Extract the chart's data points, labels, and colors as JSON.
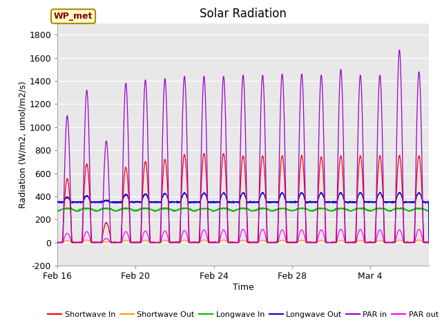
{
  "title": "Solar Radiation",
  "xlabel": "Time",
  "ylabel": "Radiation (W/m2, umol/m2/s)",
  "ylim": [
    -200,
    1900
  ],
  "yticks": [
    -200,
    0,
    200,
    400,
    600,
    800,
    1000,
    1200,
    1400,
    1600,
    1800
  ],
  "xtick_labels": [
    "Feb 16",
    "Feb 20",
    "Feb 24",
    "Feb 28",
    "Mar 4"
  ],
  "figure_bg_color": "#ffffff",
  "plot_bg_color": "#e8e8e8",
  "grid_color": "#ffffff",
  "colors": {
    "shortwave_in": "#ff0000",
    "shortwave_out": "#ff9900",
    "longwave_in": "#00bb00",
    "longwave_out": "#0000cc",
    "par_in": "#9900cc",
    "par_out": "#ff00ff"
  },
  "legend_labels": [
    "Shortwave In",
    "Shortwave Out",
    "Longwave In",
    "Longwave Out",
    "PAR in",
    "PAR out"
  ],
  "box_label": "WP_met",
  "box_color": "#ffffcc",
  "box_edge_color": "#aa8800",
  "box_text_color": "#880000",
  "n_days": 19,
  "samples_per_day": 144
}
